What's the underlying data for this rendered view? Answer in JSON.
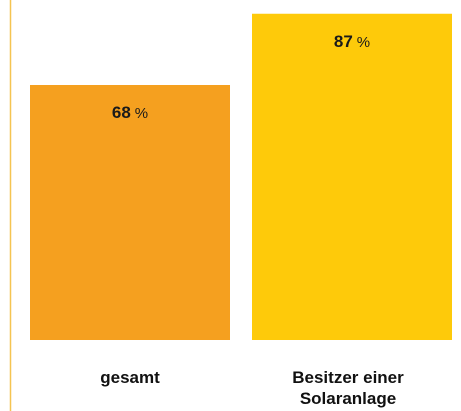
{
  "chart_data": {
    "type": "bar",
    "categories": [
      "gesamt",
      "Besitzer einer Solaranlage"
    ],
    "category_lines": [
      [
        "gesamt"
      ],
      [
        "Besitzer einer",
        "Solaranlage"
      ]
    ],
    "values": [
      68,
      87
    ],
    "value_labels": [
      "68",
      "87"
    ],
    "unit": "%",
    "ylim": [
      0,
      100
    ],
    "bar_colors": [
      "#F5A01F",
      "#FECA0A"
    ],
    "axis_color": "#F5C451",
    "grid": false,
    "legend": "none"
  }
}
